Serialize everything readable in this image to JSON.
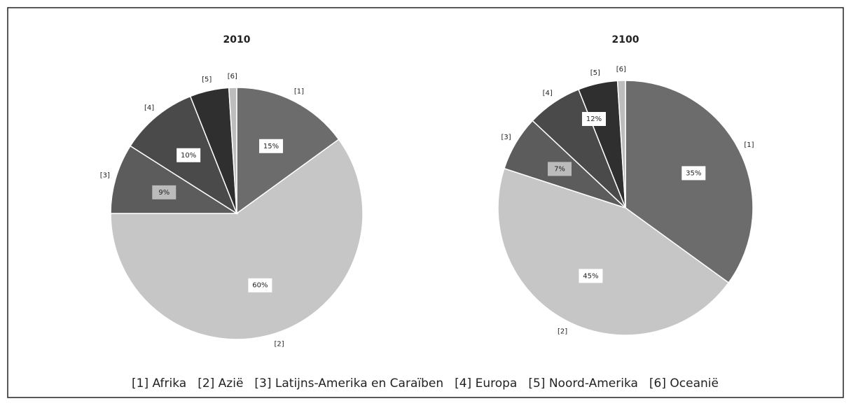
{
  "chart_data": [
    {
      "type": "pie",
      "title": "2010",
      "categories": [
        "[1]",
        "[2]",
        "[3]",
        "[4]",
        "[5]",
        "[6]"
      ],
      "values": [
        15,
        60,
        9,
        10,
        5,
        1
      ],
      "value_labels": [
        "15%",
        "60%",
        "9%",
        "10%",
        null,
        null
      ],
      "colors": [
        "#6c6c6c",
        "#c6c6c6",
        "#5c5c5c",
        "#4a4a4a",
        "#2f2f2f",
        "#bdbdbd"
      ]
    },
    {
      "type": "pie",
      "title": "2100",
      "categories": [
        "[1]",
        "[2]",
        "[3]",
        "[4]",
        "[5]",
        "[6]"
      ],
      "values": [
        35,
        45,
        7,
        7,
        5,
        1
      ],
      "value_labels": [
        "35%",
        "45%",
        "7%",
        null,
        null,
        null
      ],
      "colors": [
        "#6c6c6c",
        "#c6c6c6",
        "#5c5c5c",
        "#4a4a4a",
        "#2f2f2f",
        "#bdbdbd"
      ],
      "annotations": [
        "12%"
      ]
    }
  ],
  "legend": [
    "[1] Afrika",
    "[2] Azië",
    "[3] Latijns-Amerika en Caraïben",
    "[4] Europa",
    "[5] Noord-Amerika",
    "[6] Oceanië"
  ]
}
